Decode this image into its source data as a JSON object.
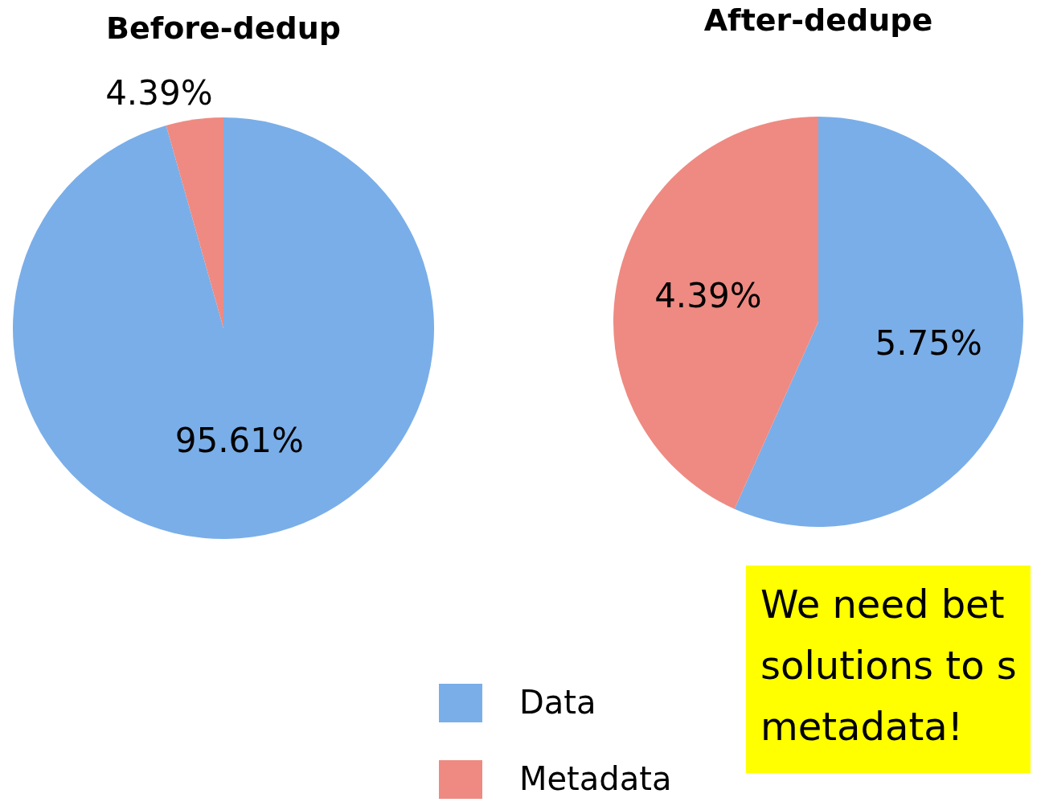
{
  "chart_data": [
    {
      "type": "pie",
      "title": "Before-dedup",
      "categories": [
        "Data",
        "Metadata"
      ],
      "values": [
        95.61,
        4.39
      ],
      "colors": [
        "#7aaee8",
        "#ee8a82"
      ],
      "value_labels": [
        "95.61%",
        "4.39%"
      ],
      "legend": "bottom right"
    },
    {
      "type": "pie",
      "title": "After-dedupe",
      "categories": [
        null,
        null
      ],
      "values": [
        5.75,
        4.39
      ],
      "colors": [
        "#7aaee8",
        "#ee8a82"
      ],
      "value_labels": [
        "5.75%",
        "4.39%"
      ],
      "annotations": [
        "We need bet\nsolutions to s\nmetadata!"
      ]
    }
  ]
}
